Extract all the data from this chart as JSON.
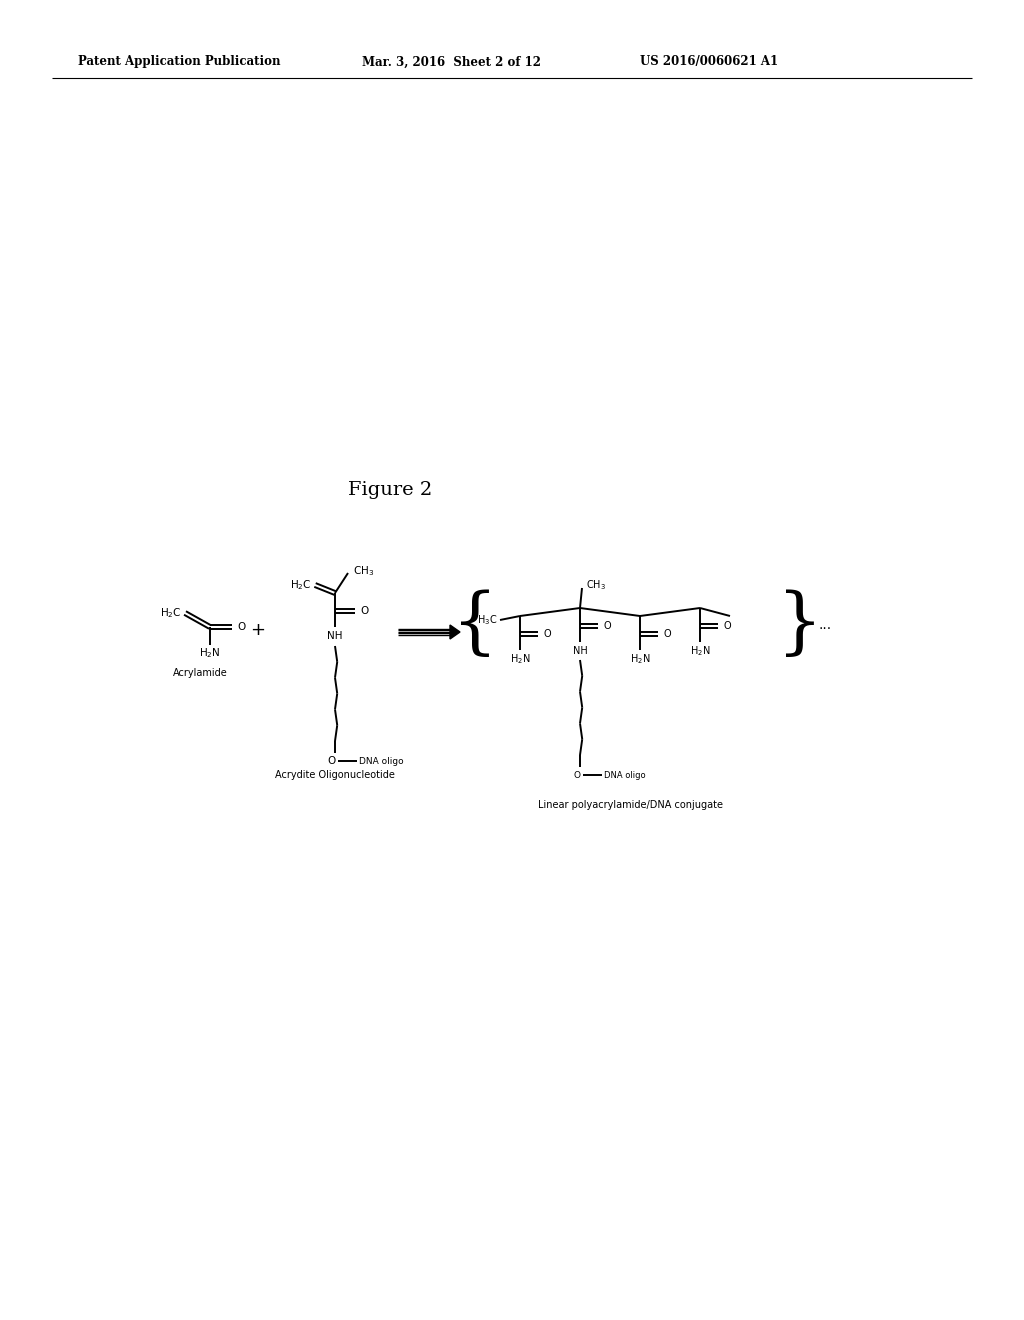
{
  "header_left": "Patent Application Publication",
  "header_mid": "Mar. 3, 2016  Sheet 2 of 12",
  "header_right": "US 2016/0060621 A1",
  "figure_label": "Figure 2",
  "bg_color": "#ffffff",
  "text_color": "#000000",
  "label1": "Acrylamide",
  "label2": "Acrydite Oligonucleotide",
  "label3": "Linear polyacrylamide/DNA conjugate",
  "fig_width": 10.24,
  "fig_height": 13.2
}
